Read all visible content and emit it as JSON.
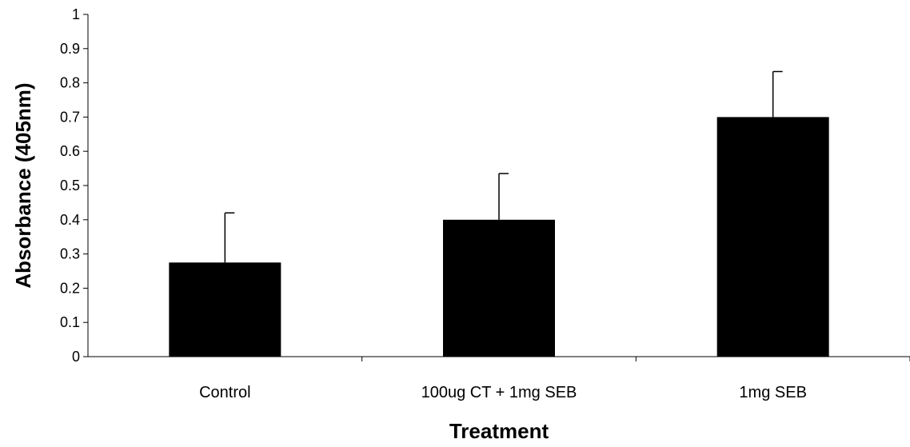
{
  "chart_data": {
    "type": "bar",
    "categories": [
      "Control",
      "100ug CT + 1mg SEB",
      "1mg SEB"
    ],
    "values": [
      0.275,
      0.4,
      0.7
    ],
    "errors": [
      0.145,
      0.135,
      0.133
    ],
    "xlabel": "Treatment",
    "ylabel": "Absorbance (405nm)",
    "ylim": [
      0,
      1
    ],
    "yticks": [
      "0",
      "0.1",
      "0.2",
      "0.3",
      "0.4",
      "0.5",
      "0.6",
      "0.7",
      "0.8",
      "0.9",
      "1"
    ],
    "bar_color": "#000000",
    "grid": false,
    "legend": "none"
  }
}
